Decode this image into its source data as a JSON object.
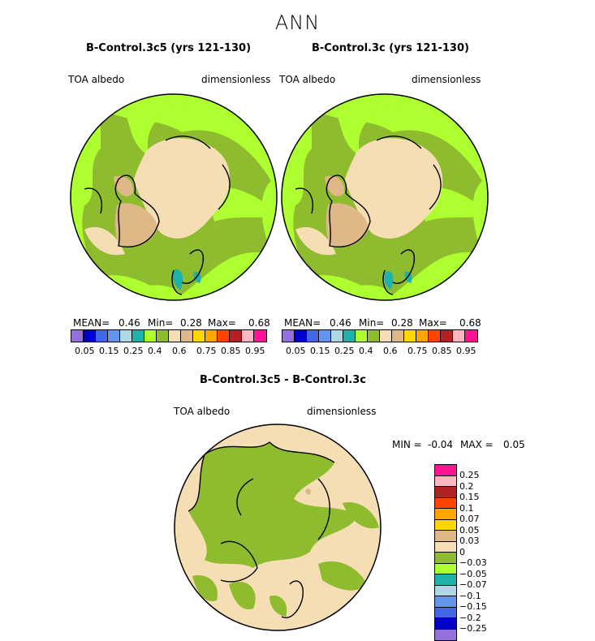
{
  "title": "ANN",
  "panels": [
    {
      "title": "B-Control.3c5 (yrs 121-130)",
      "variable": "TOA albedo",
      "units": "dimensionless",
      "stats": {
        "mean_label": "MEAN=",
        "mean": "0.46",
        "min_label": "Min=",
        "min": "0.28",
        "max_label": "Max=",
        "max": "0.68"
      }
    },
    {
      "title": "B-Control.3c (yrs 121-130)",
      "variable": "TOA albedo",
      "units": "dimensionless",
      "stats": {
        "mean_label": "MEAN=",
        "mean": "0.46",
        "min_label": "Min=",
        "min": "0.28",
        "max_label": "Max=",
        "max": "0.68"
      }
    },
    {
      "title": "B-Control.3c5 - B-Control.3c",
      "variable": "TOA albedo",
      "units": "dimensionless",
      "stats": {
        "min_label": "MIN =",
        "min": "-0.04",
        "max_label": "MAX =",
        "max": "0.05"
      }
    }
  ],
  "colorbar_main": {
    "colors": [
      "#9370db",
      "#0000cd",
      "#4169e1",
      "#6495ed",
      "#add8e6",
      "#20b2aa",
      "#adff2f",
      "#8fbc2f",
      "#f5deb3",
      "#deb887",
      "#ffd700",
      "#ffa500",
      "#ff4500",
      "#b22222",
      "#ffb6c1",
      "#ff1493"
    ],
    "labels": [
      "0.05",
      "0.15",
      "0.25",
      "0.4",
      "0.6",
      "0.75",
      "0.85",
      "0.95"
    ]
  },
  "colorbar_diff": {
    "colors": [
      "#ff1493",
      "#ffb6c1",
      "#b22222",
      "#ff4500",
      "#ffa500",
      "#ffd700",
      "#deb887",
      "#f5deb3",
      "#8fbc2f",
      "#adff2f",
      "#20b2aa",
      "#add8e6",
      "#6495ed",
      "#4169e1",
      "#0000cd",
      "#9370db"
    ],
    "labels": [
      "0.25",
      "0.2",
      "0.15",
      "0.1",
      "0.07",
      "0.05",
      "0.03",
      "0",
      "−0.03",
      "−0.05",
      "−0.07",
      "−0.1",
      "−0.15",
      "−0.2",
      "−0.25"
    ]
  }
}
